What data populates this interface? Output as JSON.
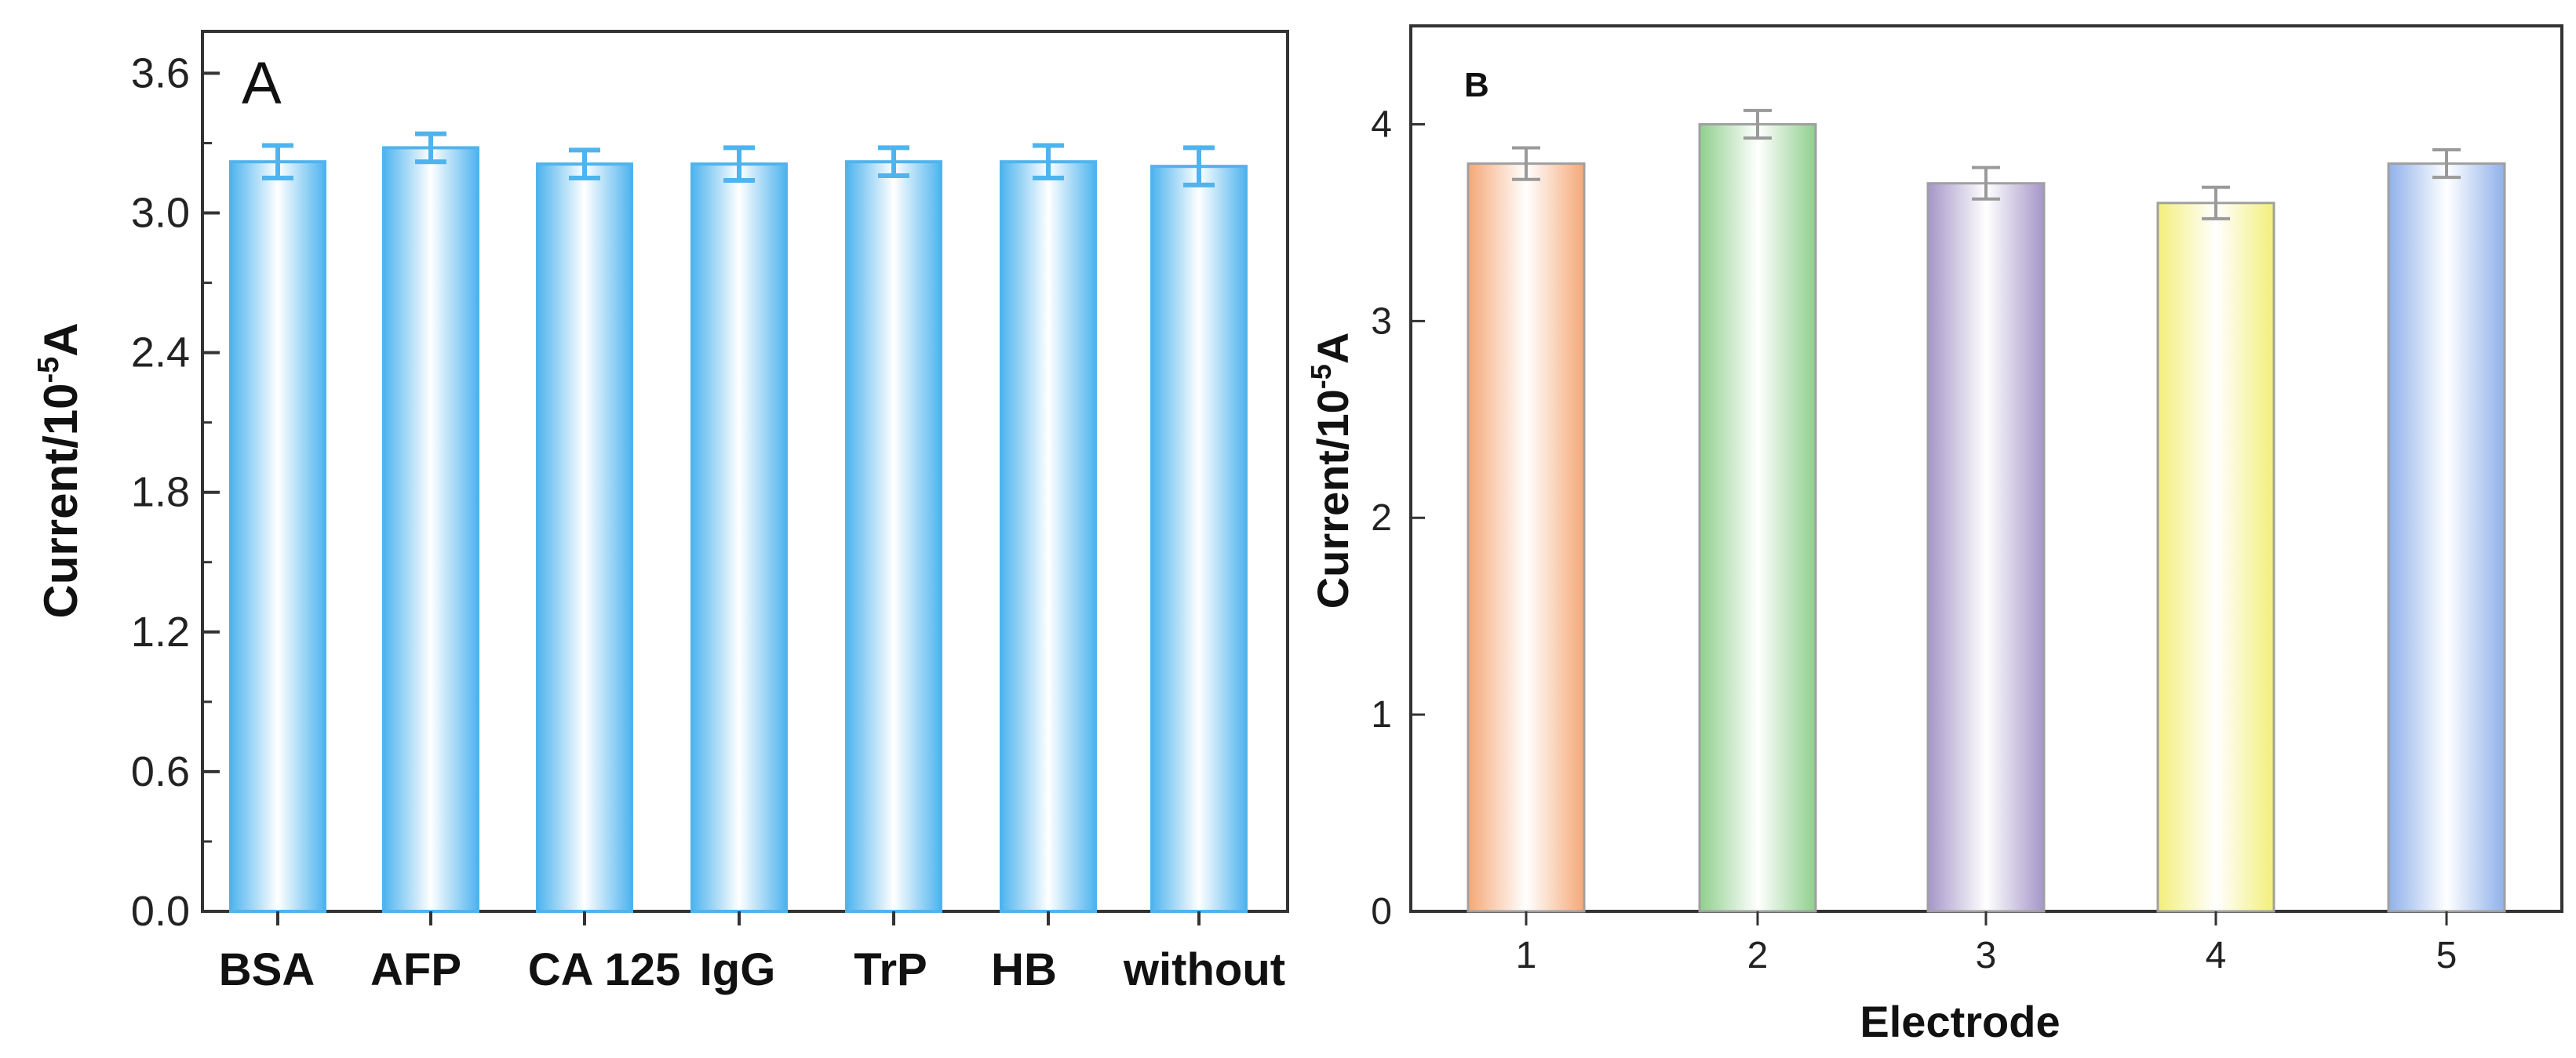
{
  "colors": {
    "panel_a_bar": "#4fb4ee",
    "panel_a_light": "#ffffff",
    "panel_b_bars": [
      "#f5a877",
      "#8fcf8c",
      "#a596c8",
      "#f3ef7a",
      "#8fb1ea"
    ],
    "panel_b_error": "#9a9a9a",
    "axis": "#333333"
  },
  "chart_data": [
    {
      "type": "bar",
      "panel": "A",
      "panel_label": "A",
      "categories": [
        "BSA",
        "AFP",
        "CA125",
        "IgG",
        "TrP",
        "HB",
        "without"
      ],
      "category_labels": [
        "BSA",
        "AFP",
        "CA 125",
        "IgG",
        "TrP",
        "HB",
        "without"
      ],
      "values": [
        3.22,
        3.28,
        3.21,
        3.21,
        3.22,
        3.22,
        3.2
      ],
      "errors": [
        0.07,
        0.06,
        0.06,
        0.07,
        0.06,
        0.07,
        0.08
      ],
      "ylabel": "Current/10",
      "ylabel_exp": "-5",
      "ylabel_unit": "A",
      "xlabel": "",
      "ylim": [
        0,
        3.78
      ],
      "yticks": [
        "0.0",
        "0.6",
        "1.2",
        "1.8",
        "2.4",
        "3.0",
        "3.6"
      ],
      "ytick_values": [
        0,
        0.6,
        1.2,
        1.8,
        2.4,
        3.0,
        3.6
      ],
      "grid": false
    },
    {
      "type": "bar",
      "panel": "B",
      "panel_label": "B",
      "categories": [
        "1",
        "2",
        "3",
        "4",
        "5"
      ],
      "values": [
        3.8,
        4.0,
        3.7,
        3.6,
        3.8
      ],
      "errors": [
        0.08,
        0.07,
        0.08,
        0.08,
        0.07
      ],
      "ylabel": "Current/10",
      "ylabel_exp": "-5",
      "ylabel_unit": "A",
      "xlabel": "Electrode",
      "ylim": [
        0,
        4.5
      ],
      "yticks": [
        "0",
        "1",
        "2",
        "3",
        "4"
      ],
      "ytick_values": [
        0,
        1,
        2,
        3,
        4
      ],
      "grid": false
    }
  ]
}
